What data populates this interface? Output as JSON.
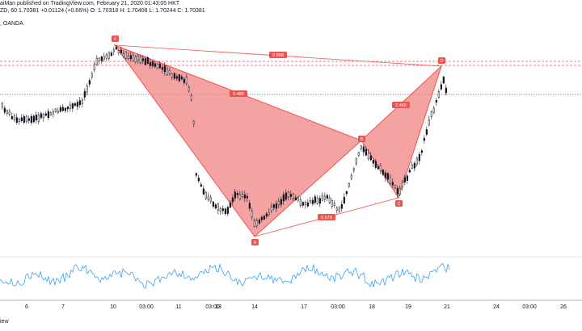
{
  "header": {
    "line1": "aiMan published on TradingView.com, February 21, 2020 01:43:05 HKT",
    "quote_prefix": "ZD, 60",
    "quote_value": "1.70381",
    "quote_change": "+0.01124 (+0.66%)",
    "quote_ohlc": "O: 1.70318  H: 1.70408  L: 1.70244  C: 1.70381",
    "line2": ", OANDA"
  },
  "footer": {
    "text": "iew"
  },
  "colors": {
    "pattern_fill": "#f28b8b",
    "pattern_stroke": "#ef5350",
    "label_bg": "#ef5350",
    "candle": "#131722",
    "oscillator": "#2196f3",
    "dashed_line": "#ef5350",
    "price_line": "#131722"
  },
  "chart_data": {
    "type": "candlestick with harmonic XABCD pattern and oscillator",
    "x_tick_labels": [
      "6",
      "7",
      "10",
      "03:00",
      "11",
      "03:00",
      "12",
      "13",
      "14",
      "17",
      "03:00",
      "18",
      "19",
      "20",
      "21",
      "24",
      "03:00",
      "26"
    ],
    "pattern_points": [
      "X",
      "A",
      "B",
      "C",
      "D"
    ],
    "pattern_ratios": [
      {
        "between": "XB",
        "value": "0.486"
      },
      {
        "between": "BD",
        "value": "2.465"
      },
      {
        "between": "XD",
        "value": "0.898"
      },
      {
        "between": "AC",
        "value": "0.579"
      }
    ]
  }
}
